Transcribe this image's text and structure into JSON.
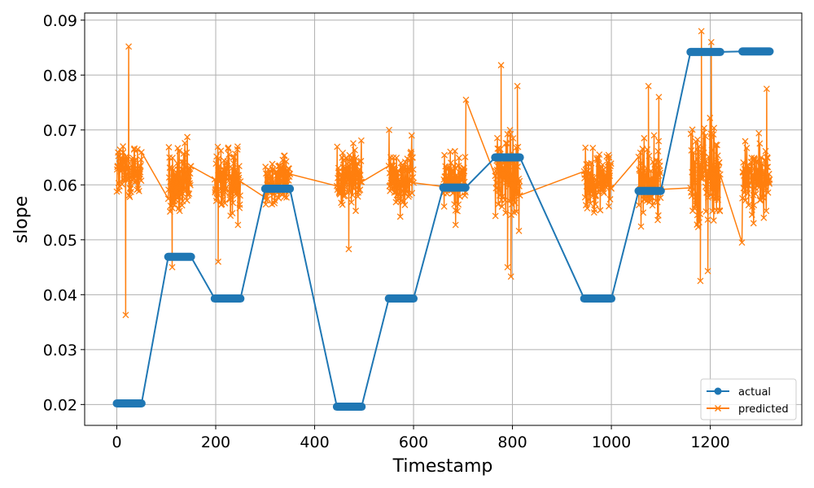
{
  "chart_data": {
    "type": "line",
    "xlabel": "Timestamp",
    "ylabel": "slope",
    "xlim": [
      -65,
      1385
    ],
    "ylim": [
      0.0162,
      0.0913
    ],
    "x_ticks": [
      0,
      200,
      400,
      600,
      800,
      1000,
      1200
    ],
    "x_tick_labels": [
      "0",
      "200",
      "400",
      "600",
      "800",
      "1000",
      "1200"
    ],
    "y_ticks": [
      0.02,
      0.03,
      0.04,
      0.05,
      0.06,
      0.07,
      0.08,
      0.09
    ],
    "y_tick_labels": [
      "0.02",
      "0.03",
      "0.04",
      "0.05",
      "0.06",
      "0.07",
      "0.08",
      "0.09"
    ],
    "grid": true,
    "legend_position": "bottom-right",
    "series": [
      {
        "name": "actual",
        "color": "#1f77b4",
        "marker": "circle",
        "segments": [
          {
            "x_start": 0,
            "x_end": 50,
            "y": 0.0202
          },
          {
            "x_start": 104,
            "x_end": 150,
            "y": 0.0469
          },
          {
            "x_start": 198,
            "x_end": 250,
            "y": 0.0393
          },
          {
            "x_start": 300,
            "x_end": 350,
            "y": 0.0593
          },
          {
            "x_start": 445,
            "x_end": 495,
            "y": 0.0196
          },
          {
            "x_start": 550,
            "x_end": 600,
            "y": 0.0393
          },
          {
            "x_start": 660,
            "x_end": 705,
            "y": 0.0595
          },
          {
            "x_start": 765,
            "x_end": 815,
            "y": 0.065
          },
          {
            "x_start": 945,
            "x_end": 1000,
            "y": 0.0393
          },
          {
            "x_start": 1055,
            "x_end": 1100,
            "y": 0.0589
          },
          {
            "x_start": 1160,
            "x_end": 1220,
            "y": 0.0842
          },
          {
            "x_start": 1265,
            "x_end": 1320,
            "y": 0.0843
          }
        ]
      },
      {
        "name": "predicted",
        "color": "#ff7f0e",
        "marker": "x",
        "segments": [
          {
            "x_start": 0,
            "x_end": 50,
            "mean": 0.0625,
            "low": 0.054,
            "high": 0.079
          },
          {
            "x_start": 104,
            "x_end": 150,
            "mean": 0.06,
            "low": 0.045,
            "high": 0.074
          },
          {
            "x_start": 198,
            "x_end": 250,
            "mean": 0.061,
            "low": 0.046,
            "high": 0.075
          },
          {
            "x_start": 300,
            "x_end": 350,
            "mean": 0.061,
            "low": 0.054,
            "high": 0.075
          },
          {
            "x_start": 445,
            "x_end": 495,
            "mean": 0.0615,
            "low": 0.0483,
            "high": 0.0745
          },
          {
            "x_start": 550,
            "x_end": 600,
            "mean": 0.0615,
            "low": 0.053,
            "high": 0.078
          },
          {
            "x_start": 660,
            "x_end": 705,
            "mean": 0.061,
            "low": 0.0527,
            "high": 0.0755
          },
          {
            "x_start": 765,
            "x_end": 815,
            "mean": 0.062,
            "low": 0.0433,
            "high": 0.0818
          },
          {
            "x_start": 945,
            "x_end": 1000,
            "mean": 0.061,
            "low": 0.0495,
            "high": 0.0743
          },
          {
            "x_start": 1055,
            "x_end": 1100,
            "mean": 0.061,
            "low": 0.0483,
            "high": 0.078
          },
          {
            "x_start": 1160,
            "x_end": 1220,
            "mean": 0.062,
            "low": 0.0425,
            "high": 0.088
          },
          {
            "x_start": 1265,
            "x_end": 1320,
            "mean": 0.061,
            "low": 0.0495,
            "high": 0.0775
          }
        ],
        "outliers": [
          {
            "x": 18,
            "y": 0.0363
          },
          {
            "x": 24,
            "y": 0.0852
          },
          {
            "x": 1182,
            "y": 0.088
          },
          {
            "x": 1202,
            "y": 0.086
          },
          {
            "x": 1195,
            "y": 0.0443
          },
          {
            "x": 1180,
            "y": 0.0425
          },
          {
            "x": 777,
            "y": 0.0818
          },
          {
            "x": 797,
            "y": 0.0433
          },
          {
            "x": 810,
            "y": 0.078
          },
          {
            "x": 706,
            "y": 0.0755
          },
          {
            "x": 1075,
            "y": 0.078
          },
          {
            "x": 1096,
            "y": 0.076
          },
          {
            "x": 205,
            "y": 0.046
          },
          {
            "x": 112,
            "y": 0.045
          },
          {
            "x": 469,
            "y": 0.0483
          },
          {
            "x": 1264,
            "y": 0.0495
          },
          {
            "x": 1314,
            "y": 0.0775
          },
          {
            "x": 685,
            "y": 0.0527
          },
          {
            "x": 790,
            "y": 0.045
          }
        ]
      }
    ]
  }
}
